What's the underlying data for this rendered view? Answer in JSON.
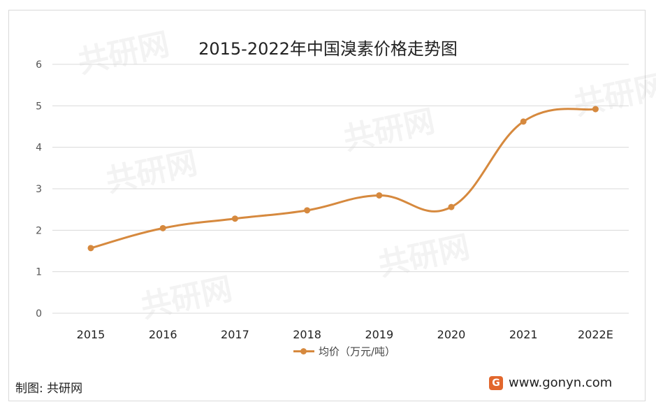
{
  "chart_data": {
    "type": "line",
    "title": "2015-2022年中国溴素价格走势图",
    "categories": [
      "2015",
      "2016",
      "2017",
      "2018",
      "2019",
      "2020",
      "2021",
      "2022E"
    ],
    "series": [
      {
        "name": "均价（万元/吨）",
        "values": [
          1.57,
          2.05,
          2.28,
          2.48,
          2.84,
          2.56,
          4.62,
          4.92
        ],
        "color": "#d6893e"
      }
    ],
    "ylim": [
      0,
      6
    ],
    "yticks": [
      0,
      1,
      2,
      3,
      4,
      5,
      6
    ],
    "grid": true,
    "legend_position": "bottom"
  },
  "source_label": "制图: 共研网",
  "website": "www.gonyn.com",
  "logo_letter": "G",
  "watermark_text": "共研网"
}
